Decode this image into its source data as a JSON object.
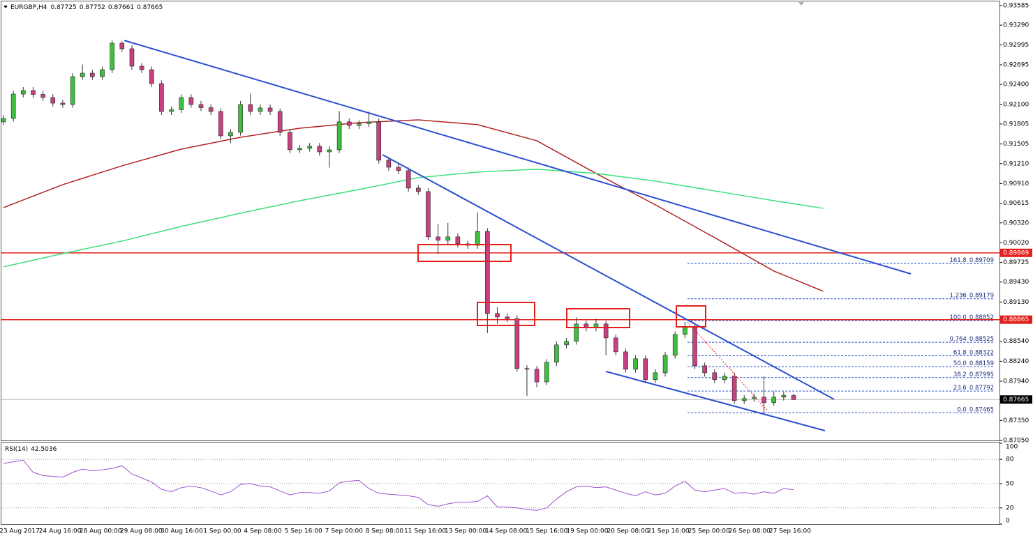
{
  "chart_data": [
    {
      "type": "candlestick",
      "symbol": "EURGBP,H4",
      "up_color": "#3fbf3f",
      "down_color": "#c8407f",
      "wick_color": "#333333",
      "open": [
        0.91837,
        0.91889,
        0.92255,
        0.92308,
        0.9225,
        0.92203,
        0.92119,
        0.92098,
        0.92517,
        0.92569,
        0.92517,
        0.92622,
        0.9302,
        0.92936,
        0.92674,
        0.92622,
        0.92412,
        0.91994,
        0.9202,
        0.92203,
        0.92098,
        0.9205,
        0.91994,
        0.91627,
        0.9168,
        0.92098,
        0.91994,
        0.92046,
        0.91994,
        0.9168,
        0.91418,
        0.9144,
        0.9147,
        0.91386,
        0.91418,
        0.91837,
        0.91784,
        0.9181,
        0.91837,
        0.91261,
        0.91156,
        0.91104,
        0.90842,
        0.9079,
        0.90109,
        0.90057,
        0.90109,
        0.90004,
        0.89983,
        0.9019,
        0.88957,
        0.88905,
        0.8888,
        0.8813,
        0.8812,
        0.8793,
        0.88224,
        0.88486,
        0.88539,
        0.888,
        0.88748,
        0.888,
        0.88591,
        0.88381,
        0.8812,
        0.88277,
        0.87963,
        0.88067,
        0.88329,
        0.88643,
        0.88748,
        0.88172,
        0.88067,
        0.87963,
        0.88015,
        0.87649,
        0.8768,
        0.87701,
        0.87617,
        0.87701,
        0.87725
      ],
      "high": [
        0.9194,
        0.92305,
        0.9236,
        0.9236,
        0.923,
        0.92255,
        0.9217,
        0.9257,
        0.927,
        0.9262,
        0.9267,
        0.93062,
        0.9305,
        0.9299,
        0.9272,
        0.9267,
        0.9246,
        0.9207,
        0.9225,
        0.9225,
        0.9215,
        0.921,
        0.9204,
        0.9173,
        0.9215,
        0.9226,
        0.921,
        0.921,
        0.9204,
        0.9173,
        0.9149,
        0.9152,
        0.9152,
        0.9147,
        0.92,
        0.9189,
        0.9186,
        0.9199,
        0.9189,
        0.9131,
        0.9121,
        0.9115,
        0.9089,
        0.9084,
        0.903,
        0.9032,
        0.9016,
        0.9005,
        0.90475,
        0.9024,
        0.8905,
        0.8896,
        0.8893,
        0.8818,
        0.8817,
        0.8827,
        0.8854,
        0.8859,
        0.889,
        0.8885,
        0.8888,
        0.8885,
        0.8864,
        0.8843,
        0.8833,
        0.8833,
        0.8812,
        0.8838,
        0.8869,
        0.88832,
        0.888,
        0.8822,
        0.8812,
        0.8807,
        0.8807,
        0.8773,
        0.8775,
        0.88015,
        0.8779,
        0.8778,
        0.87752
      ],
      "low": [
        0.9179,
        0.9184,
        0.92205,
        0.922,
        0.9215,
        0.9207,
        0.9205,
        0.9205,
        0.9247,
        0.9247,
        0.9247,
        0.9257,
        0.9289,
        0.9262,
        0.9257,
        0.9236,
        0.9194,
        0.9194,
        0.9197,
        0.9205,
        0.92,
        0.9194,
        0.9158,
        0.9152,
        0.9163,
        0.9194,
        0.9194,
        0.9194,
        0.9163,
        0.9137,
        0.9137,
        0.9139,
        0.9133,
        0.9115,
        0.9137,
        0.9173,
        0.9173,
        0.9176,
        0.9121,
        0.911,
        0.9105,
        0.9079,
        0.9074,
        0.9006,
        0.8985,
        0.9,
        0.8995,
        0.8993,
        0.8993,
        0.88664,
        0.888,
        0.8883,
        0.8808,
        0.87722,
        0.8785,
        0.8788,
        0.8817,
        0.8843,
        0.8849,
        0.8869,
        0.8869,
        0.8833,
        0.8833,
        0.8807,
        0.8807,
        0.8791,
        0.8791,
        0.8801,
        0.8828,
        0.8859,
        0.8812,
        0.8801,
        0.8791,
        0.8791,
        0.876,
        0.876,
        0.8763,
        0.8746,
        0.8757,
        0.8765,
        0.87661
      ],
      "close": [
        0.91889,
        0.92255,
        0.92308,
        0.9225,
        0.92203,
        0.92119,
        0.92098,
        0.92517,
        0.92569,
        0.92517,
        0.92622,
        0.9302,
        0.92936,
        0.92674,
        0.92622,
        0.92412,
        0.91994,
        0.9202,
        0.92203,
        0.92098,
        0.9205,
        0.91994,
        0.91627,
        0.9168,
        0.92098,
        0.91994,
        0.92046,
        0.91994,
        0.9168,
        0.91418,
        0.9144,
        0.9147,
        0.91386,
        0.91418,
        0.91837,
        0.91784,
        0.9181,
        0.91837,
        0.91261,
        0.91156,
        0.91104,
        0.90842,
        0.9079,
        0.90109,
        0.90057,
        0.90109,
        0.90004,
        0.89983,
        0.9019,
        0.88957,
        0.88905,
        0.8888,
        0.8813,
        0.8812,
        0.8793,
        0.88224,
        0.88486,
        0.88539,
        0.888,
        0.88748,
        0.888,
        0.88591,
        0.88381,
        0.8812,
        0.88277,
        0.87963,
        0.88067,
        0.88329,
        0.88643,
        0.88748,
        0.88172,
        0.88067,
        0.87963,
        0.88015,
        0.87649,
        0.8768,
        0.87701,
        0.87617,
        0.87701,
        0.87725,
        0.87665
      ],
      "ylim": [
        0.8705,
        0.93585
      ],
      "yticks": [
        0.93585,
        {
          "value": 0.9329,
          "label": "0.93290"
        },
        0.92995,
        0.92695,
        {
          "value": 0.924,
          "label": "0.92400"
        },
        {
          "value": 0.921,
          "label": "0.92100"
        },
        0.91805,
        0.91505,
        {
          "value": 0.9121,
          "label": "0.91210"
        },
        {
          "value": 0.9091,
          "label": "0.90910"
        },
        0.90615,
        {
          "value": 0.9032,
          "label": "0.90320"
        },
        {
          "value": 0.9002,
          "label": "0.90020"
        },
        0.89725,
        {
          "value": 0.8943,
          "label": "0.89430"
        },
        {
          "value": 0.8913,
          "label": "0.89130"
        },
        {
          "value": 0.8854,
          "label": "0.88540"
        },
        {
          "value": 0.8824,
          "label": "0.88240"
        },
        {
          "value": 0.8794,
          "label": "0.87940"
        },
        {
          "value": 0.8735,
          "label": "0.87350"
        },
        {
          "value": 0.8705,
          "label": "0.87050"
        }
      ],
      "grid": false,
      "x_labels": [
        "23 Aug 2017",
        "24 Aug 16:00",
        "28 Aug 00:00",
        "29 Aug 08:00",
        "30 Aug 16:00",
        "1 Sep 00:00",
        "4 Sep 08:00",
        "5 Sep 16:00",
        "7 Sep 00:00",
        "8 Sep 08:00",
        "11 Sep 16:00",
        "13 Sep 00:00",
        "14 Sep 08:00",
        "15 Sep 16:00",
        "19 Sep 00:00",
        "20 Sep 08:00",
        "21 Sep 16:00",
        "25 Sep 00:00",
        "26 Sep 08:00",
        "27 Sep 16:00"
      ],
      "lines": [
        {
          "color": "#b22222",
          "x": [
            0,
            6,
            12,
            18,
            24,
            30,
            36,
            42,
            48,
            54,
            60,
            66,
            72,
            78,
            83
          ],
          "values": [
            0.90549,
            0.90894,
            0.91177,
            0.91428,
            0.91606,
            0.91742,
            0.91826,
            0.91868,
            0.91795,
            0.91554,
            0.91062,
            0.90591,
            0.90098,
            0.89596,
            0.89292
          ]
        },
        {
          "color": "#3ee07a",
          "x": [
            0,
            6,
            12,
            18,
            24,
            30,
            36,
            42,
            48,
            54,
            60,
            66,
            72,
            78,
            83
          ],
          "values": [
            0.89659,
            0.89858,
            0.90046,
            0.90266,
            0.90465,
            0.90653,
            0.90821,
            0.90999,
            0.91083,
            0.91125,
            0.91062,
            0.90947,
            0.908,
            0.90653,
            0.90538
          ]
        }
      ],
      "hlines": [
        {
          "value": 0.89869,
          "color": "#e3201b"
        },
        {
          "value": 0.88865,
          "color": "#e3201b"
        }
      ],
      "fib_color": "#2a4fd0",
      "fibonacci": [
        {
          "level": "161.8",
          "price": 0.89709
        },
        {
          "level": "1.236",
          "price": 0.89179
        },
        {
          "level": "100.0",
          "price": 0.88852
        },
        {
          "level": "0.764",
          "price": 0.88525
        },
        {
          "level": "61.8",
          "price": 0.88322
        },
        {
          "level": "50.0",
          "price": 0.88159
        },
        {
          "level": "38.2",
          "price": 0.87995
        },
        {
          "level": "23.6",
          "price": 0.87792
        },
        {
          "level": "0.0",
          "price": 0.87465
        }
      ]
    },
    {
      "type": "line",
      "title": "RSI(14)",
      "color": "#a050d0",
      "values": [
        75,
        77,
        79,
        64,
        60,
        59,
        58,
        64,
        68,
        66,
        67,
        69,
        72,
        62,
        57,
        52,
        43,
        40,
        45,
        47,
        45,
        41,
        36,
        40,
        49,
        50,
        47,
        46,
        41,
        36,
        39,
        39,
        38,
        41,
        51,
        53,
        54,
        44,
        38,
        37,
        36,
        35,
        33,
        24,
        22,
        25,
        27,
        27,
        28,
        35,
        21,
        21,
        20,
        18,
        17,
        20,
        31,
        40,
        46,
        47,
        45,
        46,
        42,
        38,
        35,
        40,
        36,
        38,
        47,
        53,
        42,
        40,
        42,
        44,
        38,
        39,
        37,
        40,
        38,
        44,
        42.5036
      ],
      "ylim": [
        0,
        100
      ],
      "yticks": [
        100,
        80,
        50,
        20,
        0
      ]
    }
  ]
}
